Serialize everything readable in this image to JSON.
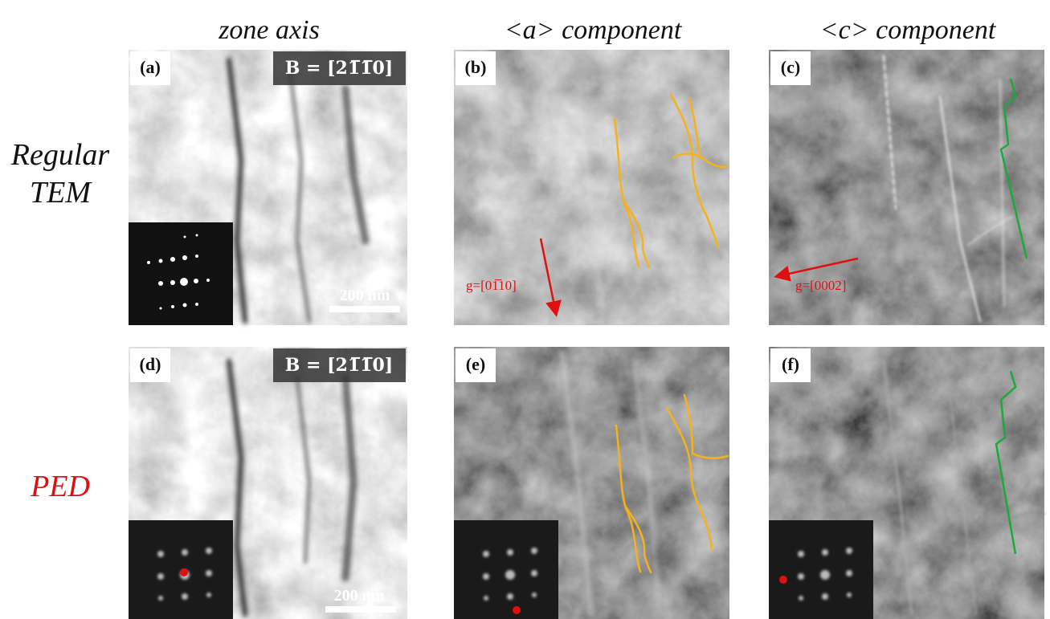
{
  "columns": [
    "zone axis",
    "<a> component",
    "<c> component"
  ],
  "rows": [
    [
      "Regular",
      "TEM"
    ],
    [
      "PED"
    ]
  ],
  "panels": [
    {
      "label": "(a)",
      "zone_axis": "B = [21̅1̅0]",
      "scale_bar": "200 nm"
    },
    {
      "label": "(b)",
      "g_vector": "g=[01̅10]"
    },
    {
      "label": "(c)",
      "g_vector": "g=[0002]"
    },
    {
      "label": "(d)",
      "zone_axis": "B = [21̅1̅0]",
      "scale_bar": "200 nm"
    },
    {
      "label": "(e)"
    },
    {
      "label": "(f)"
    }
  ]
}
